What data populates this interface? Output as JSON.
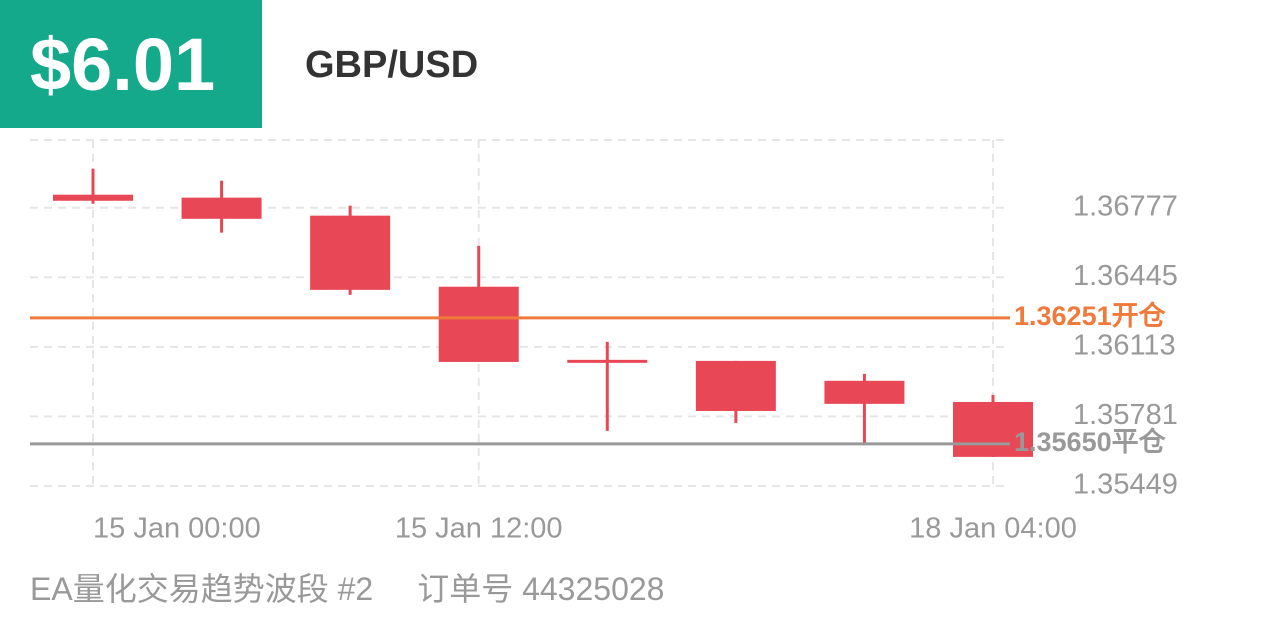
{
  "header": {
    "profit": "$6.01",
    "symbol": "GBP/USD"
  },
  "chart_data": {
    "type": "candlestick",
    "categories": [
      "15 Jan  00:00",
      null,
      null,
      "15 Jan  12:00",
      null,
      null,
      null,
      "18 Jan  04:00"
    ],
    "color": "#e84855",
    "series": [
      {
        "open": [
          1.36839,
          1.36825,
          1.36739,
          1.364,
          1.36051,
          1.36046,
          1.35951,
          1.3585
        ],
        "high": [
          1.36963,
          1.36906,
          1.36787,
          1.36595,
          1.36137,
          1.36046,
          1.35984,
          1.35884
        ],
        "low": [
          1.36796,
          1.36658,
          1.36361,
          1.36041,
          1.35712,
          1.3575,
          1.35654,
          1.35588
        ],
        "close": [
          1.3681,
          1.36724,
          1.36385,
          1.36041,
          1.36037,
          1.35807,
          1.35841,
          1.35588
        ]
      }
    ],
    "ylim": [
      1.3543,
      1.371
    ],
    "yticks": [
      1.35449,
      1.35781,
      1.36113,
      1.36445,
      1.36777
    ],
    "grid": true,
    "reference_lines": [
      {
        "value": 1.36251,
        "label": "1.36251开仓",
        "color": "#f07a3c"
      },
      {
        "value": 1.3565,
        "label": "1.35650平仓",
        "color": "#999999"
      }
    ]
  },
  "footer": {
    "strategy": "EA量化交易趋势波段 #2",
    "order": "订单号 44325028"
  }
}
